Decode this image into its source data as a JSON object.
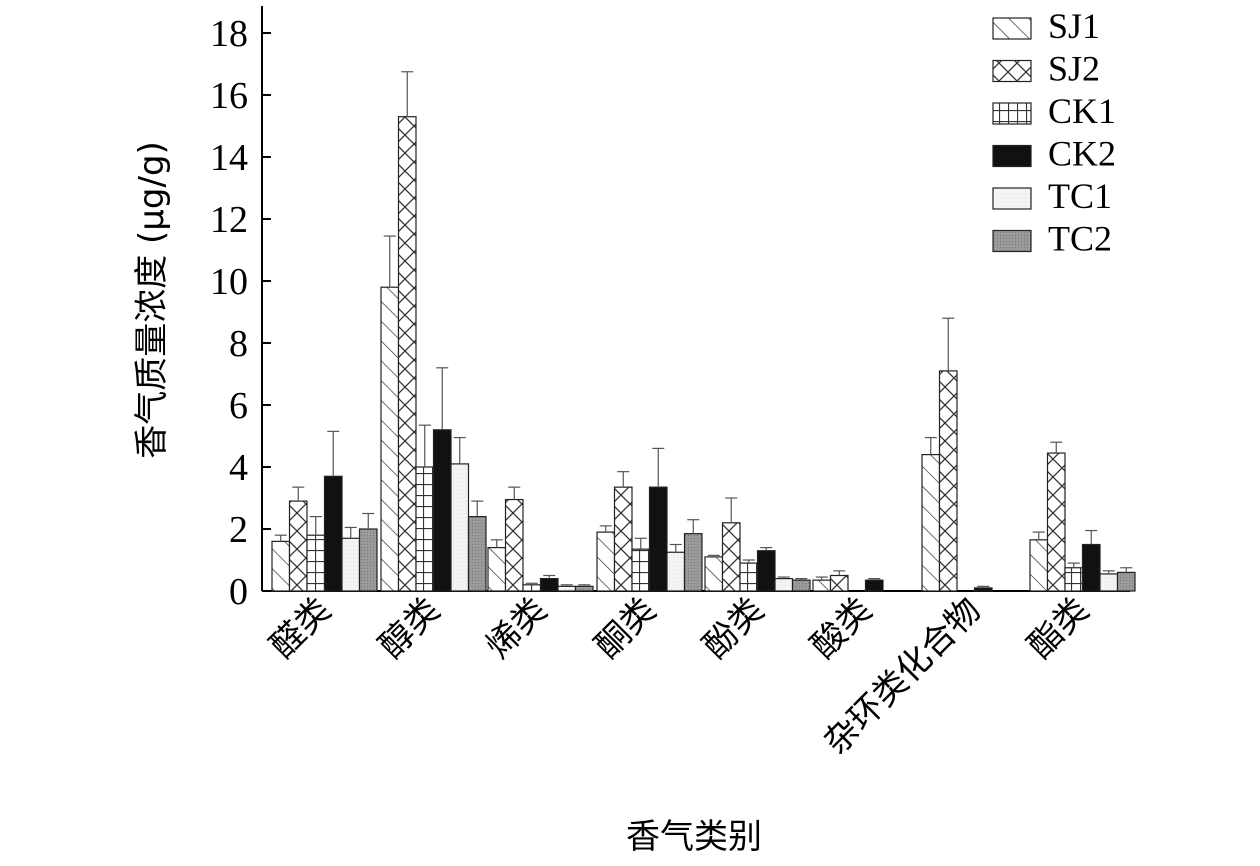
{
  "chart_data": {
    "type": "bar",
    "title": "",
    "xlabel": "香气类别",
    "ylabel": "香气质量浓度 (μg/g)",
    "ylim": [
      0,
      19
    ],
    "yticks": [
      "0",
      "2",
      "4",
      "6",
      "8",
      "10",
      "12",
      "14",
      "16",
      "18"
    ],
    "legend_position": "top-right",
    "grid": false,
    "categories": [
      "醛类",
      "醇类",
      "烯类",
      "酮类",
      "酚类",
      "酸类",
      "杂环类化合物",
      "酯类"
    ],
    "series": [
      {
        "name": "SJ1",
        "pattern": "diagonal-hatch",
        "values": [
          1.6,
          9.8,
          1.4,
          1.9,
          1.1,
          0.35,
          4.4,
          1.65
        ],
        "errors": [
          0.2,
          1.65,
          0.25,
          0.2,
          0.05,
          0.1,
          0.55,
          0.25
        ]
      },
      {
        "name": "SJ2",
        "pattern": "cross-hatch",
        "values": [
          2.9,
          15.3,
          2.95,
          3.35,
          2.2,
          0.5,
          7.1,
          4.45
        ],
        "errors": [
          0.45,
          1.45,
          0.4,
          0.5,
          0.8,
          0.15,
          1.7,
          0.35
        ]
      },
      {
        "name": "CK1",
        "pattern": "grid",
        "values": [
          1.8,
          4.0,
          0.2,
          1.35,
          0.9,
          0.0,
          0.0,
          0.75
        ],
        "errors": [
          0.6,
          1.35,
          0.05,
          0.35,
          0.1,
          0.0,
          0.0,
          0.15
        ]
      },
      {
        "name": "CK2",
        "pattern": "solid-black",
        "values": [
          3.7,
          5.2,
          0.4,
          3.35,
          1.3,
          0.35,
          0.1,
          1.5
        ],
        "errors": [
          1.45,
          2.0,
          0.1,
          1.25,
          0.1,
          0.05,
          0.05,
          0.45
        ]
      },
      {
        "name": "TC1",
        "pattern": "light-fill",
        "values": [
          1.7,
          4.1,
          0.15,
          1.25,
          0.4,
          0.0,
          0.0,
          0.55
        ],
        "errors": [
          0.35,
          0.85,
          0.05,
          0.25,
          0.05,
          0.0,
          0.0,
          0.1
        ]
      },
      {
        "name": "TC2",
        "pattern": "gray-dots",
        "values": [
          2.0,
          2.4,
          0.15,
          1.85,
          0.35,
          0.0,
          0.0,
          0.6
        ],
        "errors": [
          0.5,
          0.5,
          0.05,
          0.45,
          0.05,
          0.0,
          0.0,
          0.15
        ]
      }
    ]
  }
}
